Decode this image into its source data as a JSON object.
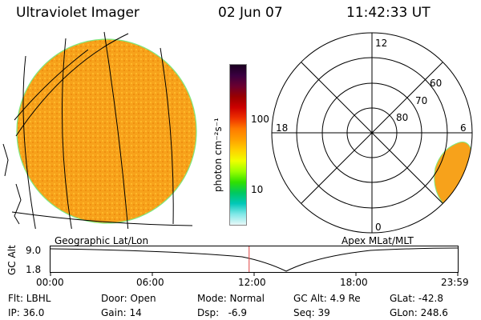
{
  "header": {
    "instrument": "Ultraviolet Imager",
    "date": "02 Jun 07",
    "time": "11:42:33 UT"
  },
  "colorbar": {
    "label": "photon cm⁻²s⁻¹",
    "ticks": [
      "100",
      "10"
    ],
    "colors": [
      "#1a0020",
      "#3a0040",
      "#6a0030",
      "#9a0000",
      "#cc0000",
      "#ee3000",
      "#ff7a00",
      "#ffa000",
      "#ffd000",
      "#f0ff00",
      "#9aff00",
      "#30e000",
      "#00c860",
      "#00c8b8",
      "#80e8e8",
      "#e8f8f8"
    ]
  },
  "left_panel": {
    "caption": "Geographic Lat/Lon",
    "earth_color": "#f7a21b",
    "limb_color": "#7fe87f"
  },
  "right_panel": {
    "caption": "Apex MLat/MLT",
    "mlt_labels": [
      "12",
      "6",
      "0",
      "18"
    ],
    "mlat_labels": [
      "60",
      "70",
      "80"
    ],
    "earth_color": "#f7a21b"
  },
  "timeline": {
    "ylabel": "GC Alt",
    "ymax": "9.0",
    "ymin": "1.8",
    "ticks": [
      "00:00",
      "06:00",
      "12:00",
      "18:00",
      "23:59"
    ],
    "current_time_fraction": 0.4877,
    "marker_color": "#e04040"
  },
  "info": {
    "flt": "Flt: LBHL",
    "ip": "IP: 36.0",
    "door": "Door: Open",
    "gain": "Gain: 14",
    "mode": "Mode: Normal",
    "dsp": "Dsp:   -6.9",
    "gcalt": "GC Alt: 4.9 Re",
    "seq": "Seq: 39",
    "glat": "GLat: -42.8",
    "glon": "GLon: 248.6"
  }
}
